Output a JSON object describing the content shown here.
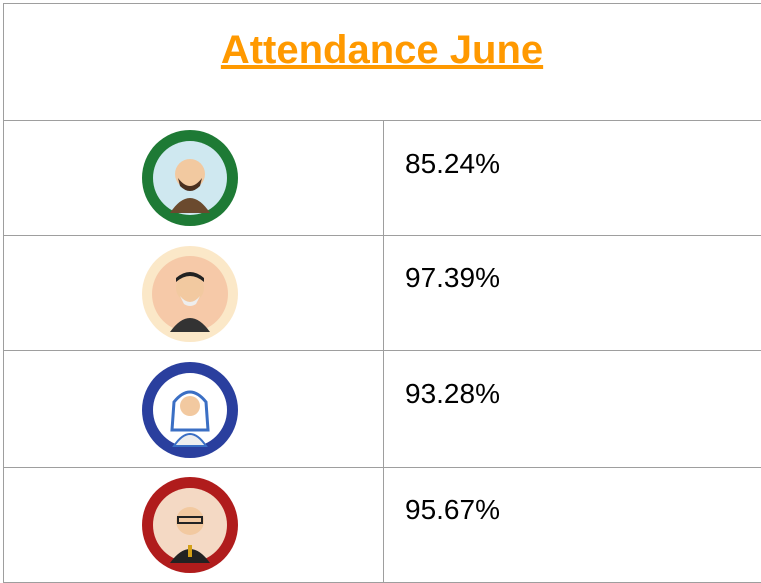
{
  "table": {
    "title": "Attendance June",
    "rows": [
      [
        "85.24%"
      ],
      [
        "97.39%"
      ],
      [
        "93.28%"
      ],
      [
        "95.67%"
      ]
    ]
  }
}
